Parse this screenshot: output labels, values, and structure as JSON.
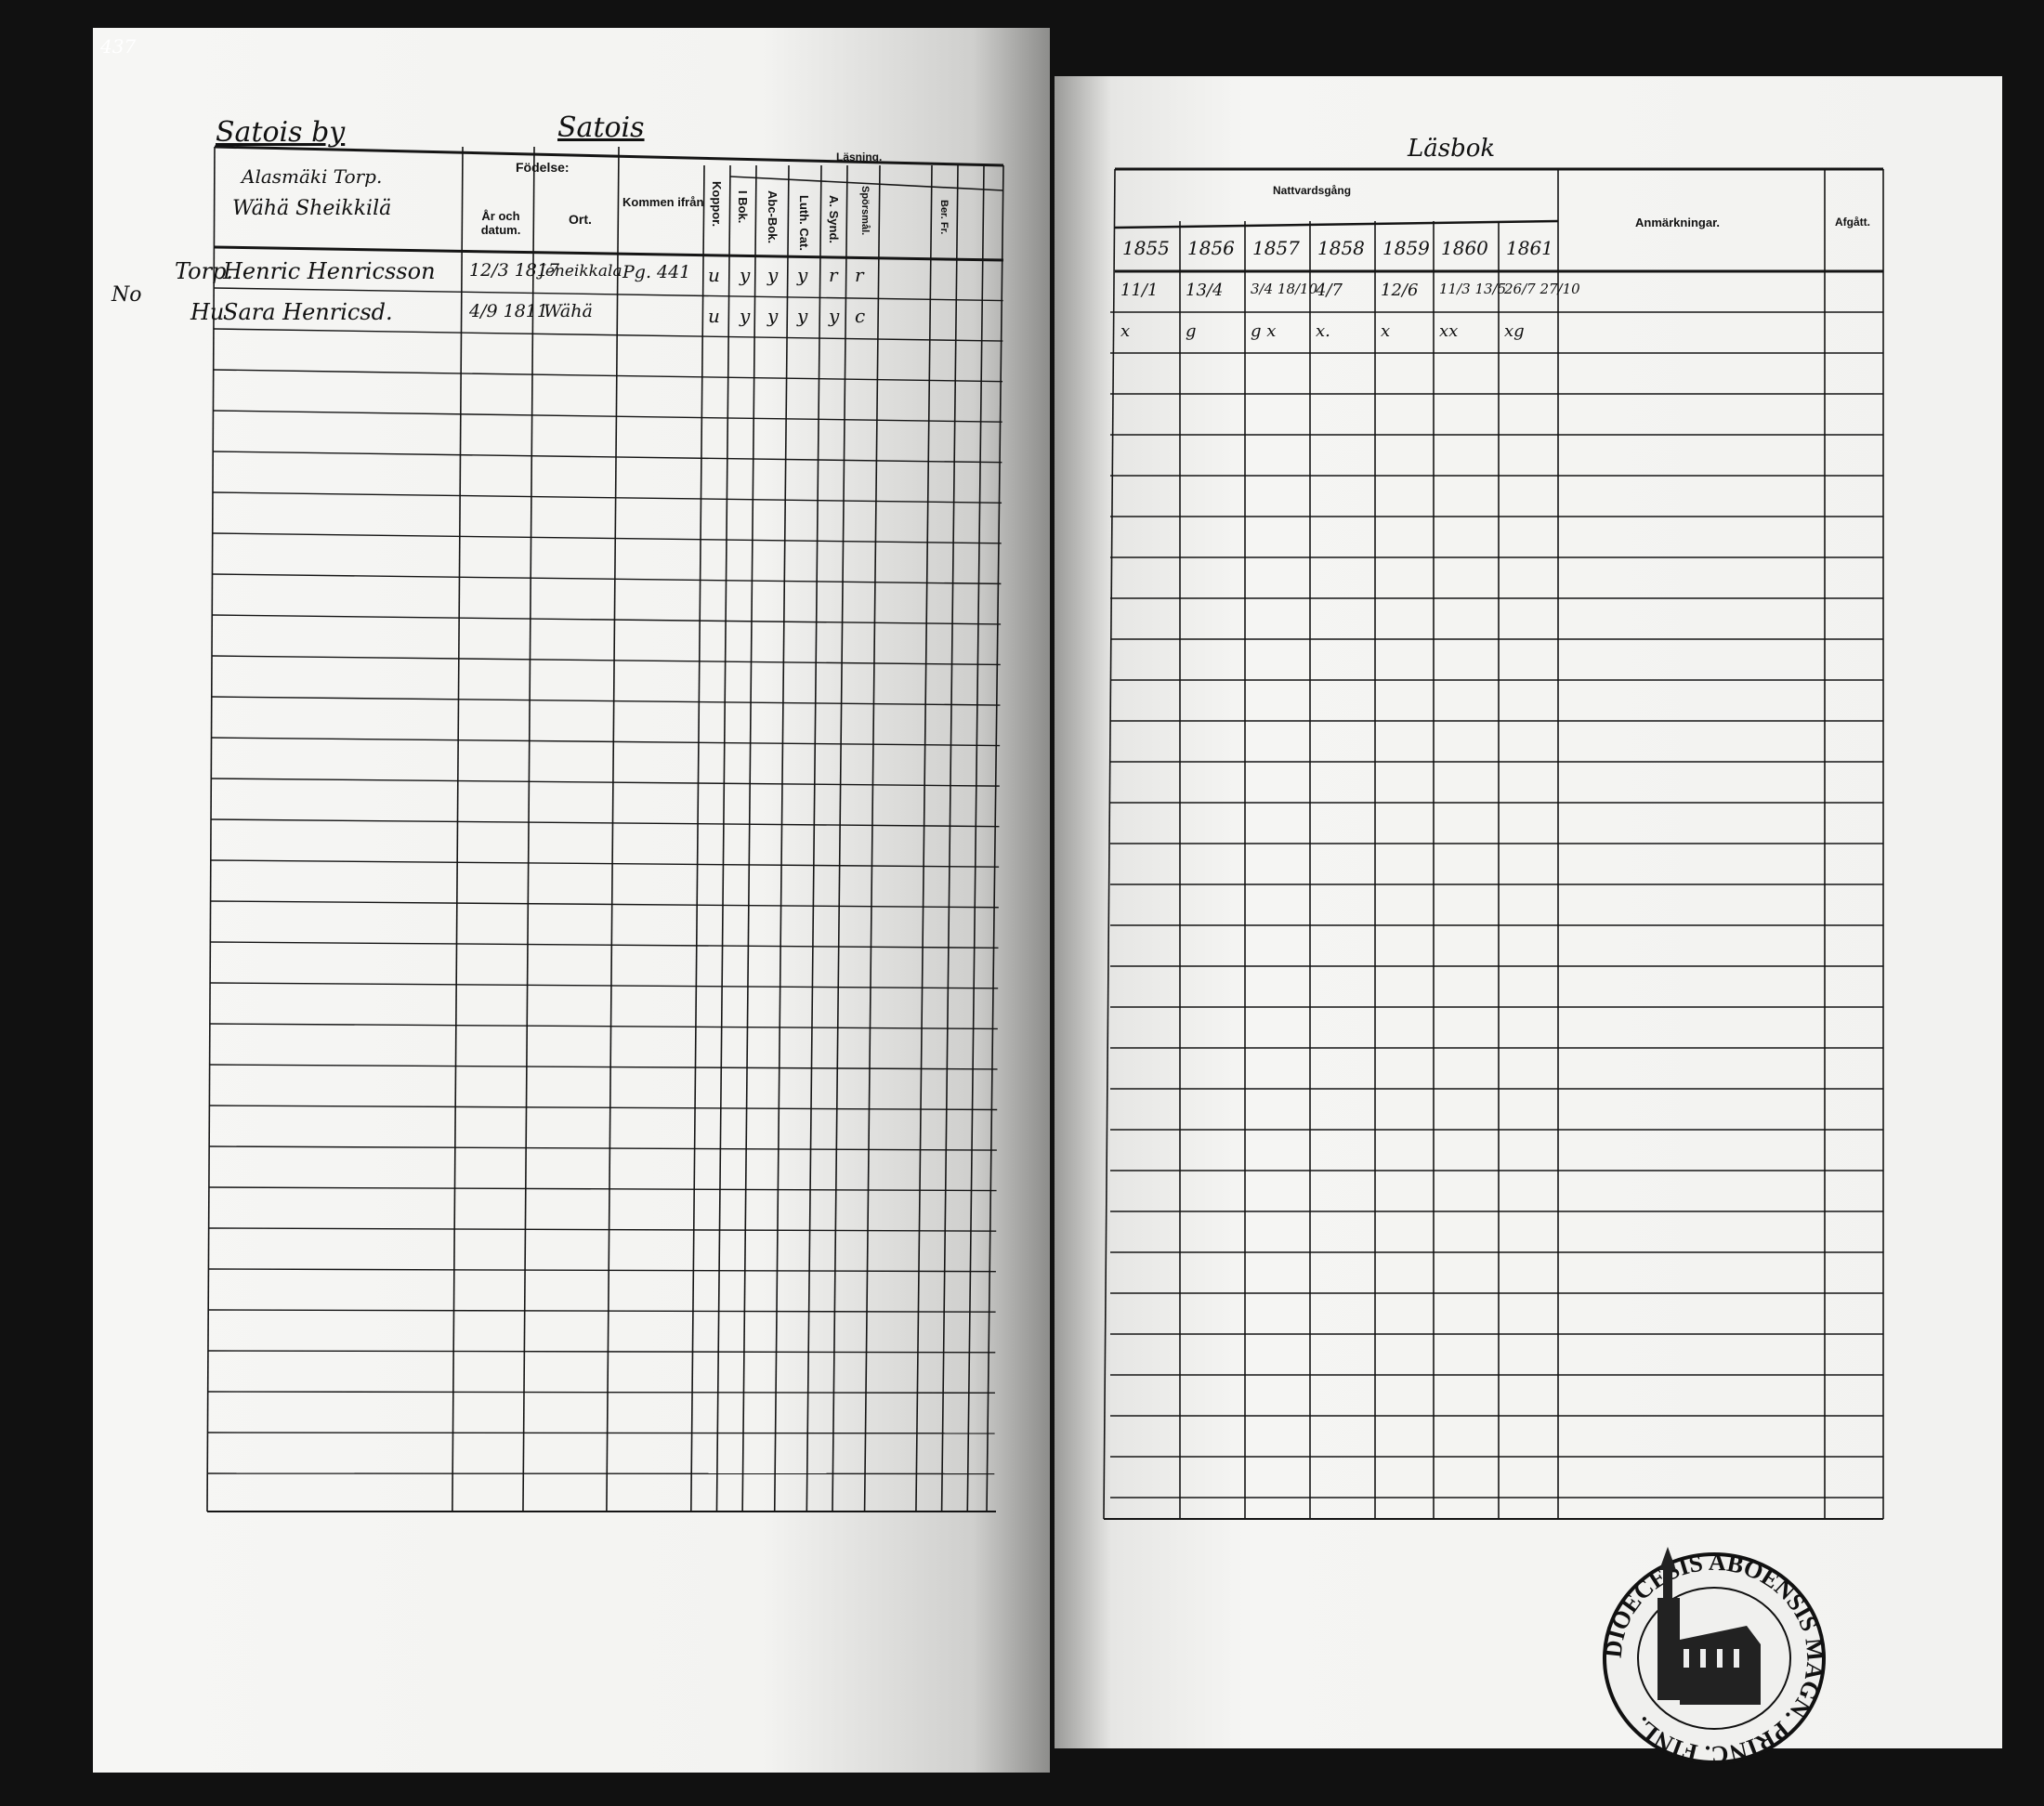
{
  "page_number": "437",
  "margin_note": "No",
  "left": {
    "village": "Satois by",
    "heading": "Satois",
    "homestead_line1": "Alasmäki Torp.",
    "homestead_line2": "Wähä Sheikkilä",
    "columns": {
      "birth": "Födelse:",
      "year_date": "År och datum.",
      "place": "Ort.",
      "came_from": "Kommen ifrån",
      "smallpox": "Koppor.",
      "reading": "Läsning.",
      "in_book": "I Bok.",
      "abc_book": "Abc-Bok.",
      "luth_cat": "Luth. Cat.",
      "synd": "A. Synd.",
      "questions": "Spörsmål.",
      "ber_fr": "Ber. Fr."
    },
    "rows": [
      {
        "title": "Torp.",
        "name": "Henric Henricsson",
        "birth": "12/3 1817",
        "place": "Jeneikkala",
        "came_from": "Pg. 441",
        "marks": [
          "u",
          "y",
          "y",
          "y",
          "r",
          "r"
        ]
      },
      {
        "title": "Hu",
        "name": "Sara Henricsd.",
        "birth": "4/9 1811",
        "place": "Wähä",
        "came_from": "",
        "marks": [
          "u",
          "y",
          "y",
          "y",
          "y",
          "c"
        ]
      }
    ]
  },
  "right": {
    "heading": "Läsbok",
    "communion": "Nattvardsgång",
    "years": [
      "1855",
      "1856",
      "1857",
      "1858",
      "1859",
      "1860",
      "1861"
    ],
    "remarks": "Anmärkningar.",
    "departed": "Afgått.",
    "rows": [
      [
        "11/1",
        "13/4",
        "3/4 18/10",
        "4/7",
        "12/6",
        "11/3 13/5",
        "26/7 27/10"
      ],
      [
        "x",
        "g",
        "g x",
        "x.",
        "x",
        "xx",
        "xg"
      ]
    ]
  },
  "stamp": {
    "text": "DIOECESIS ABOENSIS MAGN. PRINC. FINL."
  }
}
